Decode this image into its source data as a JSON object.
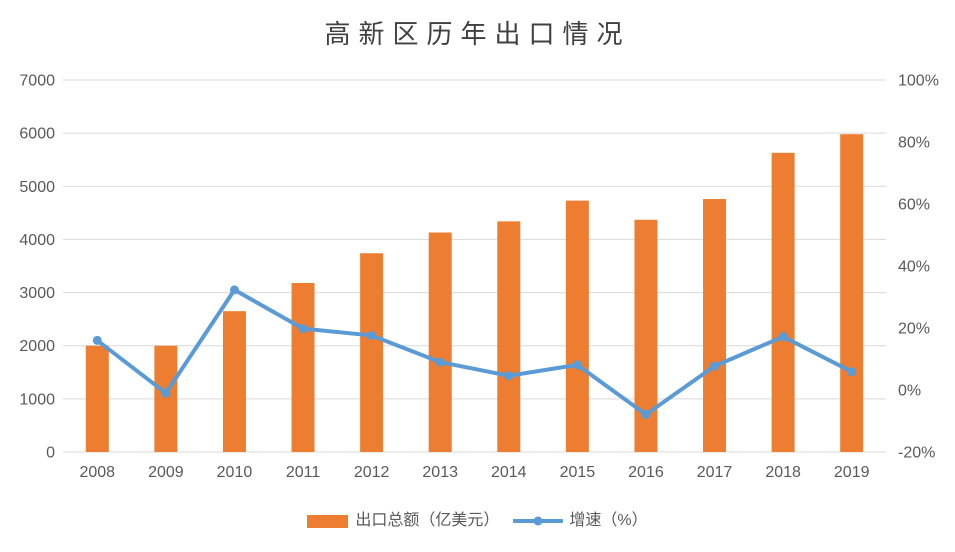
{
  "chart_data": {
    "type": "bar+line",
    "title": "高新区历年出口情况",
    "categories": [
      "2008",
      "2009",
      "2010",
      "2011",
      "2012",
      "2013",
      "2014",
      "2015",
      "2016",
      "2017",
      "2018",
      "2019"
    ],
    "series": [
      {
        "name": "出口总额（亿美元）",
        "type": "bar",
        "axis": "left",
        "color": "#ED7D31",
        "values": [
          2000,
          2000,
          2650,
          3180,
          3740,
          4130,
          4340,
          4730,
          4370,
          4760,
          5630,
          5980
        ]
      },
      {
        "name": "增速（%）",
        "type": "line",
        "axis": "right",
        "color": "#5B9BD5",
        "values": [
          16,
          -1,
          32.3,
          19.8,
          17.6,
          9,
          4.6,
          8.1,
          -7.9,
          7.7,
          17.2,
          5.9
        ]
      }
    ],
    "left_axis": {
      "min": 0,
      "max": 7000,
      "step": 1000,
      "tick_labels": [
        "0",
        "1000",
        "2000",
        "3000",
        "4000",
        "5000",
        "6000",
        "7000"
      ]
    },
    "right_axis": {
      "min": -20,
      "max": 100,
      "step": 20,
      "tick_labels": [
        "-20%",
        "0%",
        "20%",
        "40%",
        "60%",
        "80%",
        "100%"
      ]
    },
    "grid": true,
    "legend_position": "bottom",
    "colors": {
      "background": "#FFFFFF",
      "grid": "#D9D9D9",
      "tick_text": "#595959",
      "title_text": "#404040"
    }
  }
}
